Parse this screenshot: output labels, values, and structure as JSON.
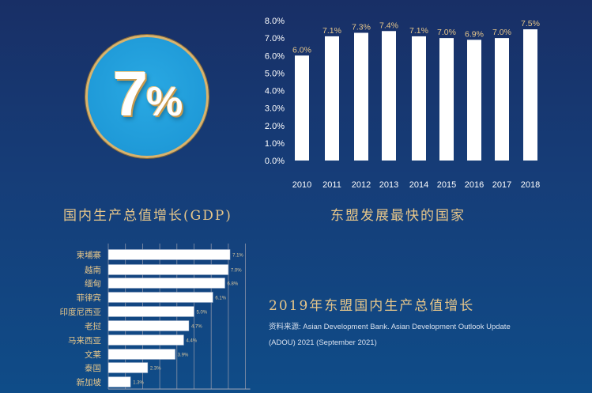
{
  "badge": {
    "value": "7",
    "suffix": "%"
  },
  "caption_left": "国内生产总值增长(GDP)",
  "caption_right": "东盟发展最快的国家",
  "title_bottom": "2019年东盟国内生产总值增长",
  "source": "资料来源: Asian Development Bank. Asian Development Outlook Update (ADOU) 2021 (September 2021)",
  "colors": {
    "gold": "#e6c68a",
    "bar": "#ffffff",
    "badge": "#1f9ad8"
  },
  "chart_data": [
    {
      "type": "bar",
      "title": "东盟发展最快的国家",
      "categories": [
        "2010",
        "2011",
        "2012",
        "2013",
        "2014",
        "2015",
        "2016",
        "2017",
        "2018"
      ],
      "values": [
        6.0,
        7.1,
        7.3,
        7.4,
        7.1,
        7.0,
        6.9,
        7.0,
        7.5
      ],
      "labels": [
        "6.0%",
        "7.1%",
        "7.3%",
        "7.4%",
        "7.1%",
        "7.0%",
        "6.9%",
        "7.0%",
        "7.5%"
      ],
      "yticks": [
        "0.0%",
        "1.0%",
        "2.0%",
        "3.0%",
        "4.0%",
        "5.0%",
        "6.0%",
        "7.0%",
        "8.0%"
      ],
      "ylim": [
        0,
        8
      ]
    },
    {
      "type": "bar",
      "orientation": "horizontal",
      "title": "2019年东盟国内生产总值增长",
      "categories": [
        "柬埔寨",
        "越南",
        "缅甸",
        "菲律宾",
        "印度尼西亚",
        "老挝",
        "马来西亚",
        "文莱",
        "泰国",
        "新加坡"
      ],
      "values": [
        7.1,
        7.0,
        6.8,
        6.1,
        5.0,
        4.7,
        4.4,
        3.9,
        2.3,
        1.3
      ],
      "labels": [
        "7.1%",
        "7.0%",
        "6.8%",
        "6.1%",
        "5.0%",
        "4.7%",
        "4.4%",
        "3.9%",
        "2.3%",
        "1.3%"
      ],
      "xlim": [
        0,
        8
      ],
      "grid": true
    }
  ]
}
